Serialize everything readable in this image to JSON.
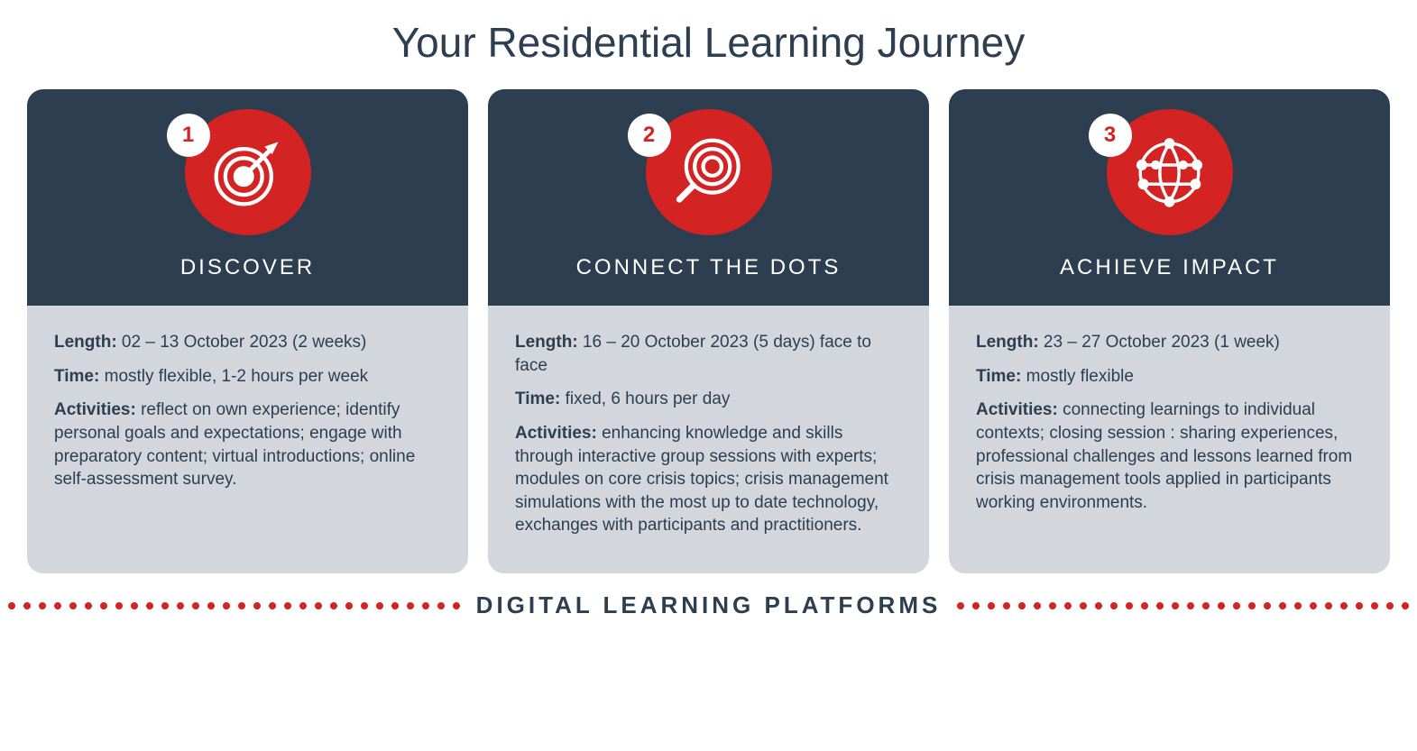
{
  "title": "Your Residential Learning Journey",
  "colors": {
    "dark_bg": "#2c3e50",
    "accent_red": "#d32323",
    "body_bg": "#d3d6dc",
    "text_dark": "#2c3e50",
    "white": "#ffffff"
  },
  "cards": [
    {
      "number": "1",
      "title": "DISCOVER",
      "icon": "target",
      "length_label": "Length:",
      "length_value": "  02 – 13 October 2023 (2 weeks)",
      "time_label": "Time:",
      "time_value": " mostly flexible, 1-2 hours per week",
      "activities_label": "Activities:",
      "activities_value": " reflect on own experience; identify personal goals and expectations; engage with preparatory content; virtual introductions; online self-assessment survey."
    },
    {
      "number": "2",
      "title": "CONNECT THE DOTS",
      "icon": "magnifier",
      "length_label": "Length:",
      "length_value": " 16 – 20 October 2023 (5 days) face to face",
      "time_label": "Time:",
      "time_value": " fixed, 6 hours per day",
      "activities_label": "Activities:",
      "activities_value": " enhancing knowledge and skills through interactive group sessions with experts; modules on core crisis topics; crisis management simulations with the most up to date technology, exchanges with participants and practitioners."
    },
    {
      "number": "3",
      "title": "ACHIEVE IMPACT",
      "icon": "globe",
      "length_label": "Length:",
      "length_value": " 23 – 27 October 2023 (1 week)",
      "time_label": "Time:",
      "time_value": " mostly flexible",
      "activities_label": "Activities:",
      "activities_value": " connecting learnings to individual contexts; closing session : sharing experiences, professional challenges and lessons learned from crisis management tools applied in participants working environments."
    }
  ],
  "footer_text": "DIGITAL LEARNING PLATFORMS"
}
